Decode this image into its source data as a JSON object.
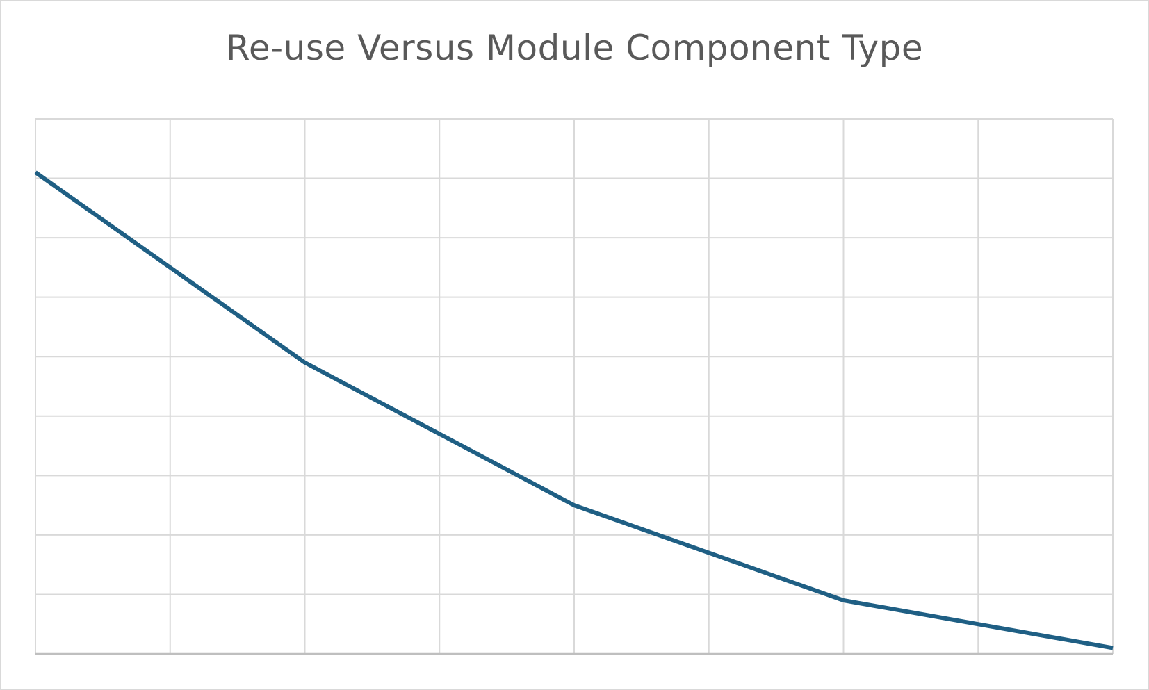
{
  "chart_data": {
    "type": "line",
    "title": "Re-use Versus Module Component Type",
    "xlabel": "",
    "ylabel": "",
    "grid": true,
    "x_divisions": 8,
    "y_divisions": 9,
    "xlim": [
      0,
      8
    ],
    "ylim": [
      0,
      9
    ],
    "x": [
      0,
      2,
      4,
      6,
      8
    ],
    "series": [
      {
        "values": [
          8.1,
          4.9,
          2.5,
          0.9,
          0.1
        ]
      }
    ],
    "colors": {
      "line": "#1f5f84",
      "grid": "#d9d9d9",
      "axis": "#bfbfbf",
      "title": "#595959"
    }
  }
}
